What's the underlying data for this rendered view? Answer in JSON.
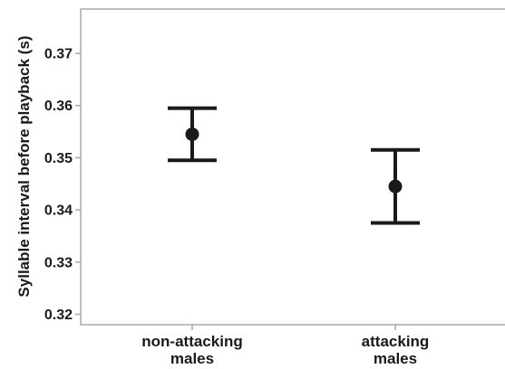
{
  "chart_data": {
    "type": "scatter",
    "title": "",
    "xlabel": "",
    "ylabel": "Syllable interval before playback (s)",
    "ylim": [
      0.318,
      0.3785
    ],
    "yticks": [
      0.32,
      0.33,
      0.34,
      0.35,
      0.36,
      0.37
    ],
    "ytick_labels": [
      "0.32",
      "0.33",
      "0.34",
      "0.35",
      "0.36",
      "0.37"
    ],
    "grid": false,
    "legend": "none",
    "categories": [
      [
        "non-attacking",
        "males"
      ],
      [
        "attacking",
        "males"
      ]
    ],
    "points": [
      {
        "mean": 0.3545,
        "lower": 0.3495,
        "upper": 0.3595
      },
      {
        "mean": 0.3445,
        "lower": 0.3375,
        "upper": 0.3515
      }
    ],
    "colors": {
      "marker": "#1a1a1a",
      "frame": "#a9a9a9",
      "text": "#1a1a1a"
    }
  }
}
